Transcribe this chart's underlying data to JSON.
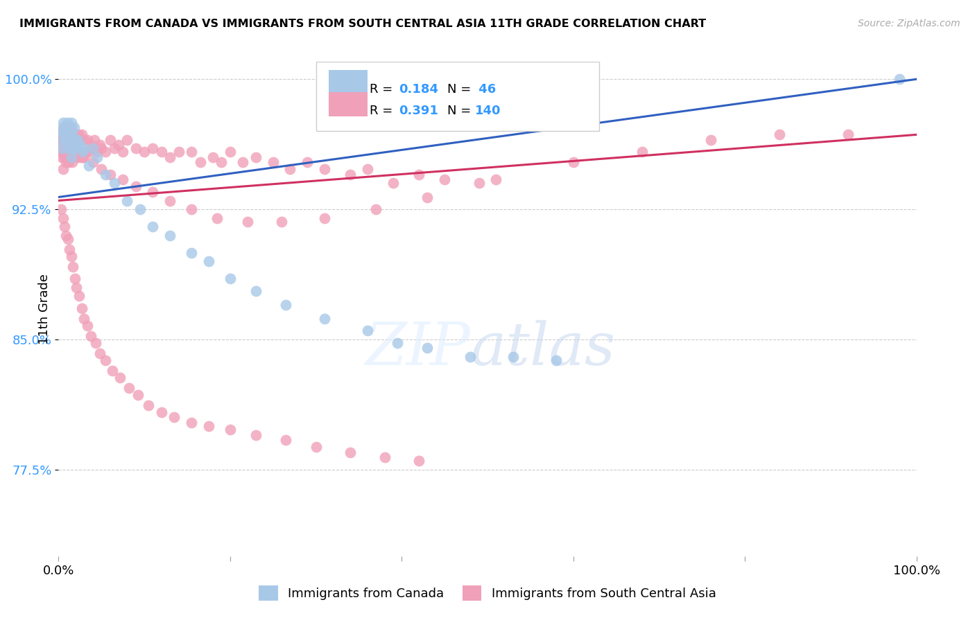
{
  "title": "IMMIGRANTS FROM CANADA VS IMMIGRANTS FROM SOUTH CENTRAL ASIA 11TH GRADE CORRELATION CHART",
  "source": "Source: ZipAtlas.com",
  "ylabel": "11th Grade",
  "xlim": [
    0.0,
    1.0
  ],
  "ylim": [
    0.725,
    1.01
  ],
  "yticks": [
    0.775,
    0.85,
    0.925,
    1.0
  ],
  "ytick_labels": [
    "77.5%",
    "85.0%",
    "92.5%",
    "100.0%"
  ],
  "xticks": [
    0.0,
    0.2,
    0.4,
    0.6,
    0.8,
    1.0
  ],
  "xtick_labels": [
    "0.0%",
    "",
    "",
    "",
    "",
    "100.0%"
  ],
  "legend_label_blue": "Immigrants from Canada",
  "legend_label_pink": "Immigrants from South Central Asia",
  "R_blue": 0.184,
  "N_blue": 46,
  "R_pink": 0.391,
  "N_pink": 140,
  "blue_color": "#a8c8e8",
  "pink_color": "#f0a0b8",
  "line_blue": "#3060c0",
  "line_pink": "#d03060",
  "watermark_zip": "ZIP",
  "watermark_atlas": "atlas",
  "blue_line_start_y": 0.932,
  "blue_line_end_y": 1.0,
  "pink_line_start_y": 0.93,
  "pink_line_end_y": 0.968,
  "blue_points_x": [
    0.003,
    0.004,
    0.005,
    0.005,
    0.006,
    0.007,
    0.008,
    0.009,
    0.01,
    0.011,
    0.012,
    0.013,
    0.014,
    0.015,
    0.015,
    0.016,
    0.017,
    0.018,
    0.019,
    0.02,
    0.022,
    0.025,
    0.028,
    0.03,
    0.035,
    0.04,
    0.045,
    0.055,
    0.065,
    0.08,
    0.095,
    0.11,
    0.13,
    0.155,
    0.175,
    0.2,
    0.23,
    0.265,
    0.31,
    0.36,
    0.395,
    0.43,
    0.48,
    0.53,
    0.58,
    0.98
  ],
  "blue_points_y": [
    0.97,
    0.96,
    0.975,
    0.965,
    0.972,
    0.968,
    0.97,
    0.965,
    0.975,
    0.96,
    0.968,
    0.972,
    0.965,
    0.975,
    0.955,
    0.968,
    0.96,
    0.972,
    0.965,
    0.96,
    0.965,
    0.962,
    0.958,
    0.96,
    0.95,
    0.96,
    0.955,
    0.945,
    0.94,
    0.93,
    0.925,
    0.915,
    0.91,
    0.9,
    0.895,
    0.885,
    0.878,
    0.87,
    0.862,
    0.855,
    0.848,
    0.845,
    0.84,
    0.84,
    0.838,
    1.0
  ],
  "pink_points_x": [
    0.002,
    0.003,
    0.003,
    0.004,
    0.004,
    0.005,
    0.005,
    0.006,
    0.006,
    0.007,
    0.007,
    0.008,
    0.008,
    0.009,
    0.009,
    0.01,
    0.01,
    0.011,
    0.011,
    0.012,
    0.012,
    0.013,
    0.013,
    0.014,
    0.014,
    0.015,
    0.015,
    0.016,
    0.016,
    0.017,
    0.018,
    0.019,
    0.02,
    0.021,
    0.022,
    0.023,
    0.024,
    0.025,
    0.026,
    0.027,
    0.028,
    0.03,
    0.032,
    0.034,
    0.036,
    0.038,
    0.04,
    0.042,
    0.045,
    0.048,
    0.05,
    0.055,
    0.06,
    0.065,
    0.07,
    0.075,
    0.08,
    0.09,
    0.1,
    0.11,
    0.12,
    0.13,
    0.14,
    0.155,
    0.165,
    0.18,
    0.19,
    0.2,
    0.215,
    0.23,
    0.25,
    0.27,
    0.29,
    0.31,
    0.34,
    0.36,
    0.39,
    0.42,
    0.45,
    0.49,
    0.003,
    0.005,
    0.007,
    0.009,
    0.011,
    0.013,
    0.015,
    0.017,
    0.019,
    0.021,
    0.024,
    0.027,
    0.03,
    0.034,
    0.038,
    0.043,
    0.048,
    0.055,
    0.063,
    0.072,
    0.082,
    0.093,
    0.105,
    0.12,
    0.135,
    0.155,
    0.175,
    0.2,
    0.23,
    0.265,
    0.3,
    0.34,
    0.38,
    0.42,
    0.005,
    0.01,
    0.015,
    0.02,
    0.025,
    0.03,
    0.04,
    0.05,
    0.06,
    0.075,
    0.09,
    0.11,
    0.13,
    0.155,
    0.185,
    0.22,
    0.26,
    0.31,
    0.37,
    0.43,
    0.51,
    0.6,
    0.68,
    0.76,
    0.84,
    0.92
  ],
  "pink_points_y": [
    0.963,
    0.968,
    0.958,
    0.965,
    0.955,
    0.972,
    0.948,
    0.968,
    0.958,
    0.965,
    0.955,
    0.97,
    0.96,
    0.965,
    0.952,
    0.968,
    0.958,
    0.965,
    0.958,
    0.972,
    0.952,
    0.968,
    0.958,
    0.965,
    0.955,
    0.972,
    0.958,
    0.968,
    0.952,
    0.965,
    0.958,
    0.968,
    0.96,
    0.965,
    0.955,
    0.968,
    0.958,
    0.965,
    0.955,
    0.968,
    0.955,
    0.965,
    0.958,
    0.965,
    0.958,
    0.962,
    0.96,
    0.965,
    0.958,
    0.962,
    0.96,
    0.958,
    0.965,
    0.96,
    0.962,
    0.958,
    0.965,
    0.96,
    0.958,
    0.96,
    0.958,
    0.955,
    0.958,
    0.958,
    0.952,
    0.955,
    0.952,
    0.958,
    0.952,
    0.955,
    0.952,
    0.948,
    0.952,
    0.948,
    0.945,
    0.948,
    0.94,
    0.945,
    0.942,
    0.94,
    0.925,
    0.92,
    0.915,
    0.91,
    0.908,
    0.902,
    0.898,
    0.892,
    0.885,
    0.88,
    0.875,
    0.868,
    0.862,
    0.858,
    0.852,
    0.848,
    0.842,
    0.838,
    0.832,
    0.828,
    0.822,
    0.818,
    0.812,
    0.808,
    0.805,
    0.802,
    0.8,
    0.798,
    0.795,
    0.792,
    0.788,
    0.785,
    0.782,
    0.78,
    0.965,
    0.965,
    0.96,
    0.958,
    0.958,
    0.955,
    0.952,
    0.948,
    0.945,
    0.942,
    0.938,
    0.935,
    0.93,
    0.925,
    0.92,
    0.918,
    0.918,
    0.92,
    0.925,
    0.932,
    0.942,
    0.952,
    0.958,
    0.965,
    0.968,
    0.968
  ]
}
